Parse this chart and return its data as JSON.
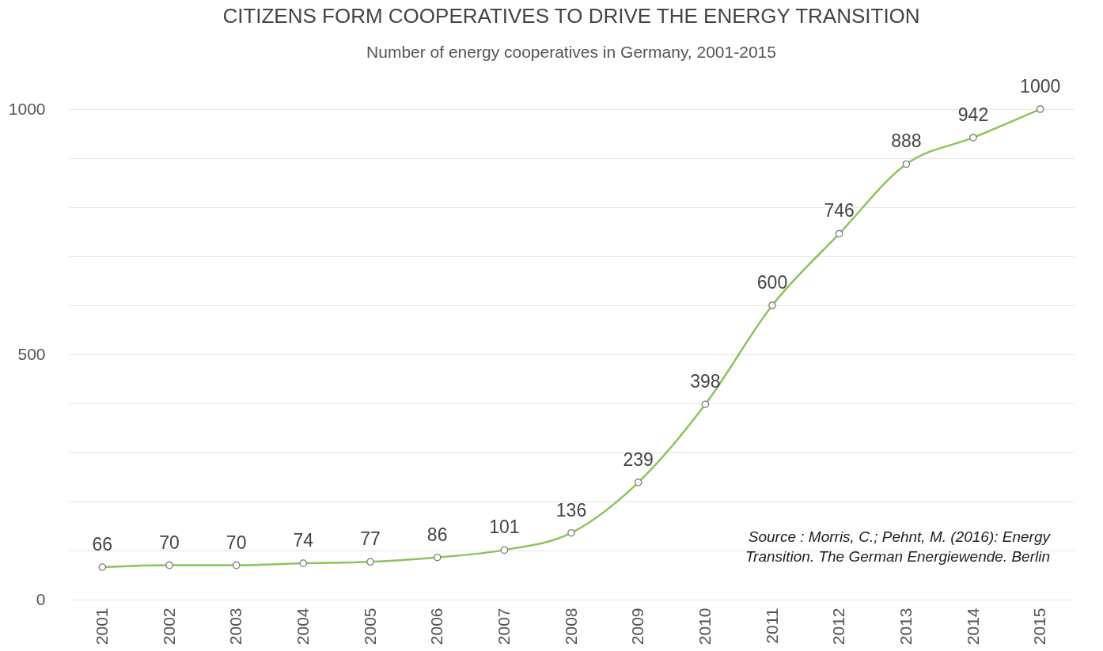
{
  "chart_data": {
    "type": "line",
    "title": "CITIZENS FORM COOPERATIVES TO DRIVE THE ENERGY TRANSITION",
    "subtitle": "Number of energy cooperatives in Germany, 2001-2015",
    "categories": [
      "2001",
      "2002",
      "2003",
      "2004",
      "2005",
      "2006",
      "2007",
      "2008",
      "2009",
      "2010",
      "2011",
      "2012",
      "2013",
      "2014",
      "2015"
    ],
    "series": [
      {
        "color": "#8cc55a",
        "values": [
          66,
          70,
          70,
          74,
          77,
          86,
          101,
          136,
          239,
          398,
          600,
          746,
          888,
          942,
          1000
        ]
      }
    ],
    "ylim": [
      0,
      1000
    ],
    "yticks": [
      0,
      {
        "value": 100,
        "label": null
      },
      {
        "value": 200,
        "label": null
      },
      {
        "value": 300,
        "label": null
      },
      {
        "value": 400,
        "label": null
      },
      500,
      {
        "value": 600,
        "label": null
      },
      {
        "value": 700,
        "label": null
      },
      {
        "value": 800,
        "label": null
      },
      {
        "value": 900,
        "label": null
      },
      1000
    ],
    "grid": "y",
    "marker": "circle",
    "line_style": "solid",
    "data_labels": true,
    "annotations": [
      "Source : Morris, C.; Pehnt, M. (2016): Energy Transition. The German Energiewende. Berlin"
    ]
  }
}
